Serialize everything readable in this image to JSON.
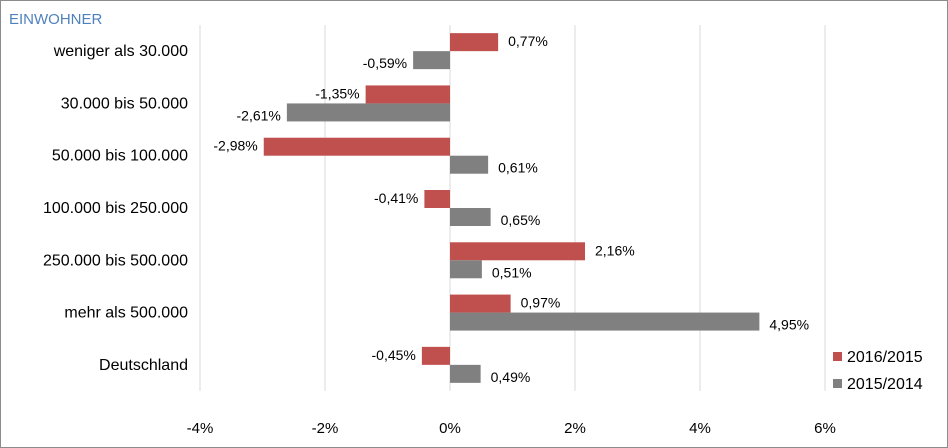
{
  "chart_data": {
    "type": "bar",
    "orientation": "horizontal",
    "header": "EINWOHNER",
    "categories": [
      "weniger als 30.000",
      "30.000 bis 50.000",
      "50.000 bis 100.000",
      "100.000 bis 250.000",
      "250.000 bis 500.000",
      "mehr als 500.000",
      "Deutschland"
    ],
    "series": [
      {
        "name": "2016/2015",
        "color": "#c0504d",
        "values": [
          0.77,
          -1.35,
          -2.98,
          -0.41,
          2.16,
          0.97,
          -0.45
        ],
        "labels": [
          "0,77%",
          "-1,35%",
          "-2,98%",
          "-0,41%",
          "2,16%",
          "0,97%",
          "-0,45%"
        ]
      },
      {
        "name": "2015/2014",
        "color": "#808080",
        "values": [
          -0.59,
          -2.61,
          0.61,
          0.65,
          0.51,
          4.95,
          0.49
        ],
        "labels": [
          "-0,59%",
          "-2,61%",
          "0,61%",
          "0,65%",
          "0,51%",
          "4,95%",
          "0,49%"
        ]
      }
    ],
    "xlim": [
      -4,
      6
    ],
    "xticks": [
      -4,
      -2,
      0,
      2,
      4,
      6
    ],
    "xtick_labels": [
      "-4%",
      "-2%",
      "0%",
      "2%",
      "4%",
      "6%"
    ],
    "grid": true,
    "legend_position": "bottom-right"
  }
}
